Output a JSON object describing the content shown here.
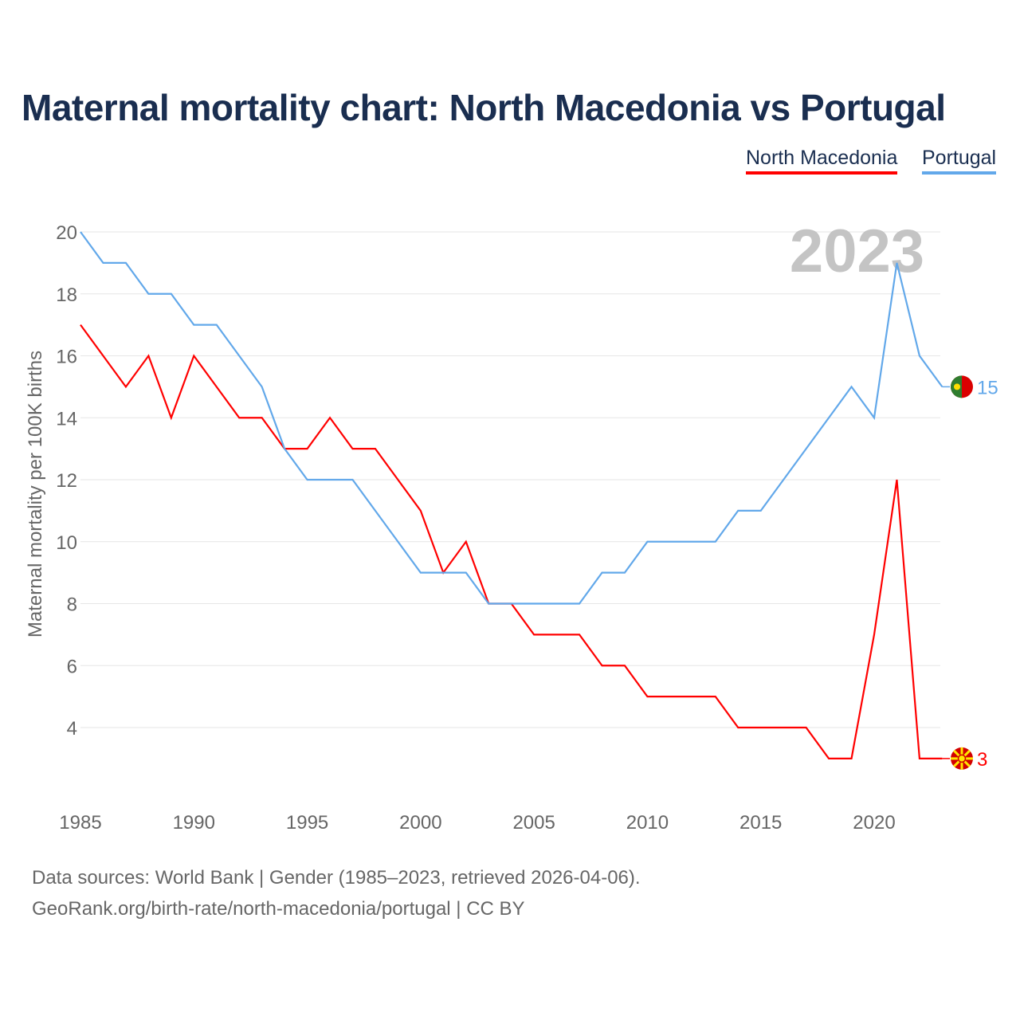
{
  "chart_data": {
    "type": "line",
    "title": "Maternal mortality chart: North Macedonia vs Portugal",
    "ylabel": "Maternal mortality per 100K births",
    "xlabel": "",
    "xlim": [
      1985,
      2023
    ],
    "ylim": [
      2,
      20
    ],
    "yticks": [
      4,
      6,
      8,
      10,
      12,
      14,
      16,
      18,
      20
    ],
    "xticks": [
      1985,
      1990,
      1995,
      2000,
      2005,
      2010,
      2015,
      2020
    ],
    "year_label": "2023",
    "grid": true,
    "legend_position": "top-right",
    "x": [
      1985,
      1986,
      1987,
      1988,
      1989,
      1990,
      1991,
      1992,
      1993,
      1994,
      1995,
      1996,
      1997,
      1998,
      1999,
      2000,
      2001,
      2002,
      2003,
      2004,
      2005,
      2006,
      2007,
      2008,
      2009,
      2010,
      2011,
      2012,
      2013,
      2014,
      2015,
      2016,
      2017,
      2018,
      2019,
      2020,
      2021,
      2022,
      2023
    ],
    "series": [
      {
        "name": "North Macedonia",
        "color": "#ff0000",
        "end_label": "3",
        "values": [
          17,
          16,
          15,
          16,
          14,
          16,
          15,
          14,
          14,
          13,
          13,
          14,
          13,
          13,
          12,
          11,
          9,
          10,
          8,
          8,
          7,
          7,
          7,
          6,
          6,
          5,
          5,
          5,
          5,
          4,
          4,
          4,
          4,
          3,
          3,
          7,
          12,
          3,
          3
        ]
      },
      {
        "name": "Portugal",
        "color": "#62a8ea",
        "end_label": "15",
        "values": [
          20,
          19,
          19,
          18,
          18,
          17,
          17,
          16,
          15,
          13,
          12,
          12,
          12,
          11,
          10,
          9,
          9,
          9,
          8,
          8,
          8,
          8,
          8,
          9,
          9,
          10,
          10,
          10,
          10,
          11,
          11,
          12,
          13,
          14,
          15,
          14,
          19,
          16,
          15
        ]
      }
    ]
  },
  "footer": {
    "source": "Data sources: World Bank | Gender (1985–2023, retrieved 2026-04-06).",
    "url": "GeoRank.org/birth-rate/north-macedonia/portugal | CC BY"
  }
}
